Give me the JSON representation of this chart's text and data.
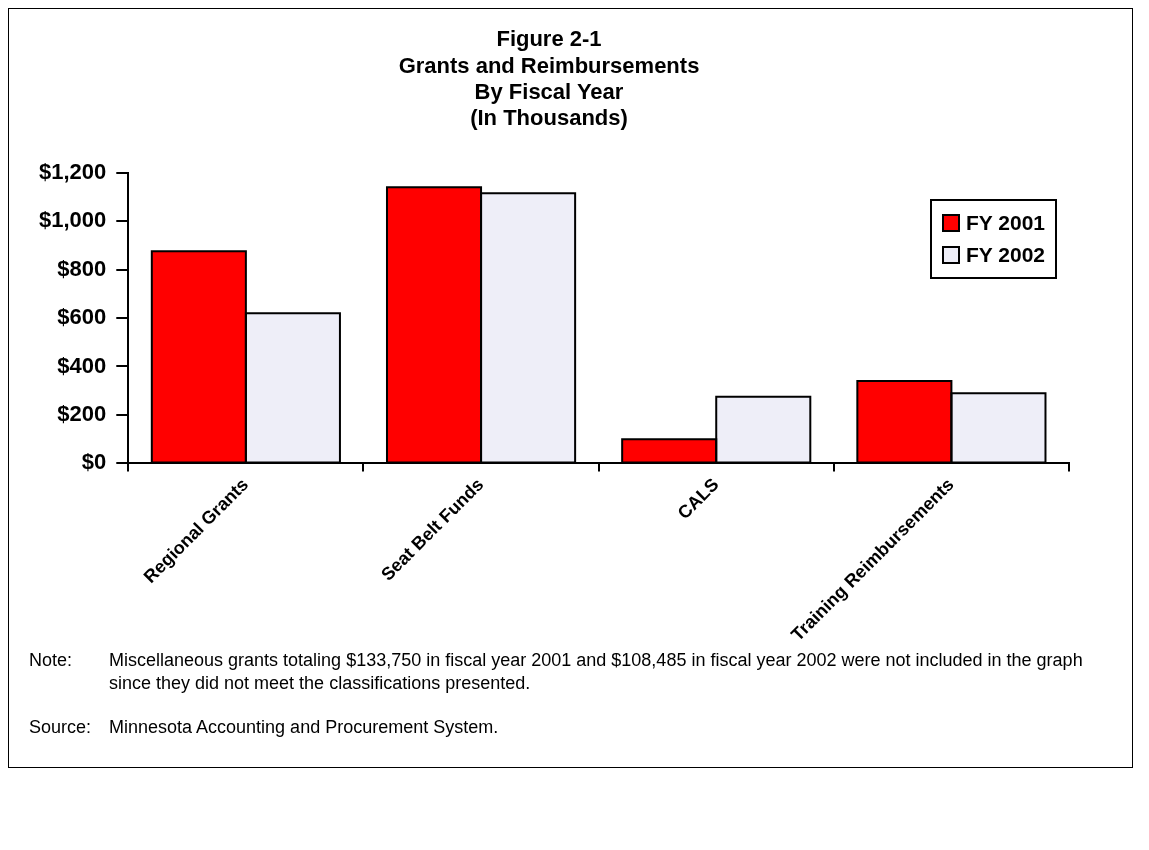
{
  "chart_data": {
    "type": "bar",
    "title": "Figure 2-1\nGrants and Reimbursements\nBy Fiscal Year\n(In Thousands)",
    "categories": [
      "Regional Grants",
      "Seat Belt Funds",
      "CALS",
      "Training Reimbursements"
    ],
    "series": [
      {
        "name": "FY 2001",
        "color": "#ff0000",
        "values": [
          875,
          1140,
          100,
          340
        ]
      },
      {
        "name": "FY 2002",
        "color": "#eeeef8",
        "values": [
          620,
          1115,
          275,
          290
        ]
      }
    ],
    "ylim": [
      0,
      1200
    ],
    "yticks": [
      {
        "value": 0,
        "label": "$0"
      },
      {
        "value": 200,
        "label": "$200"
      },
      {
        "value": 400,
        "label": "$400"
      },
      {
        "value": 600,
        "label": "$600"
      },
      {
        "value": 800,
        "label": "$800"
      },
      {
        "value": 1000,
        "label": "$1,000"
      },
      {
        "value": 1200,
        "label": "$1,200"
      }
    ],
    "grid": false,
    "legend": "top right",
    "annotations": [
      "Note: Miscellaneous grants totaling $133,750 in fiscal year 2001 and $108,485 in fiscal year 2002 were not included in the graph since they did not meet the classifications presented.",
      "Source: Minnesota Accounting and Procurement System."
    ]
  }
}
